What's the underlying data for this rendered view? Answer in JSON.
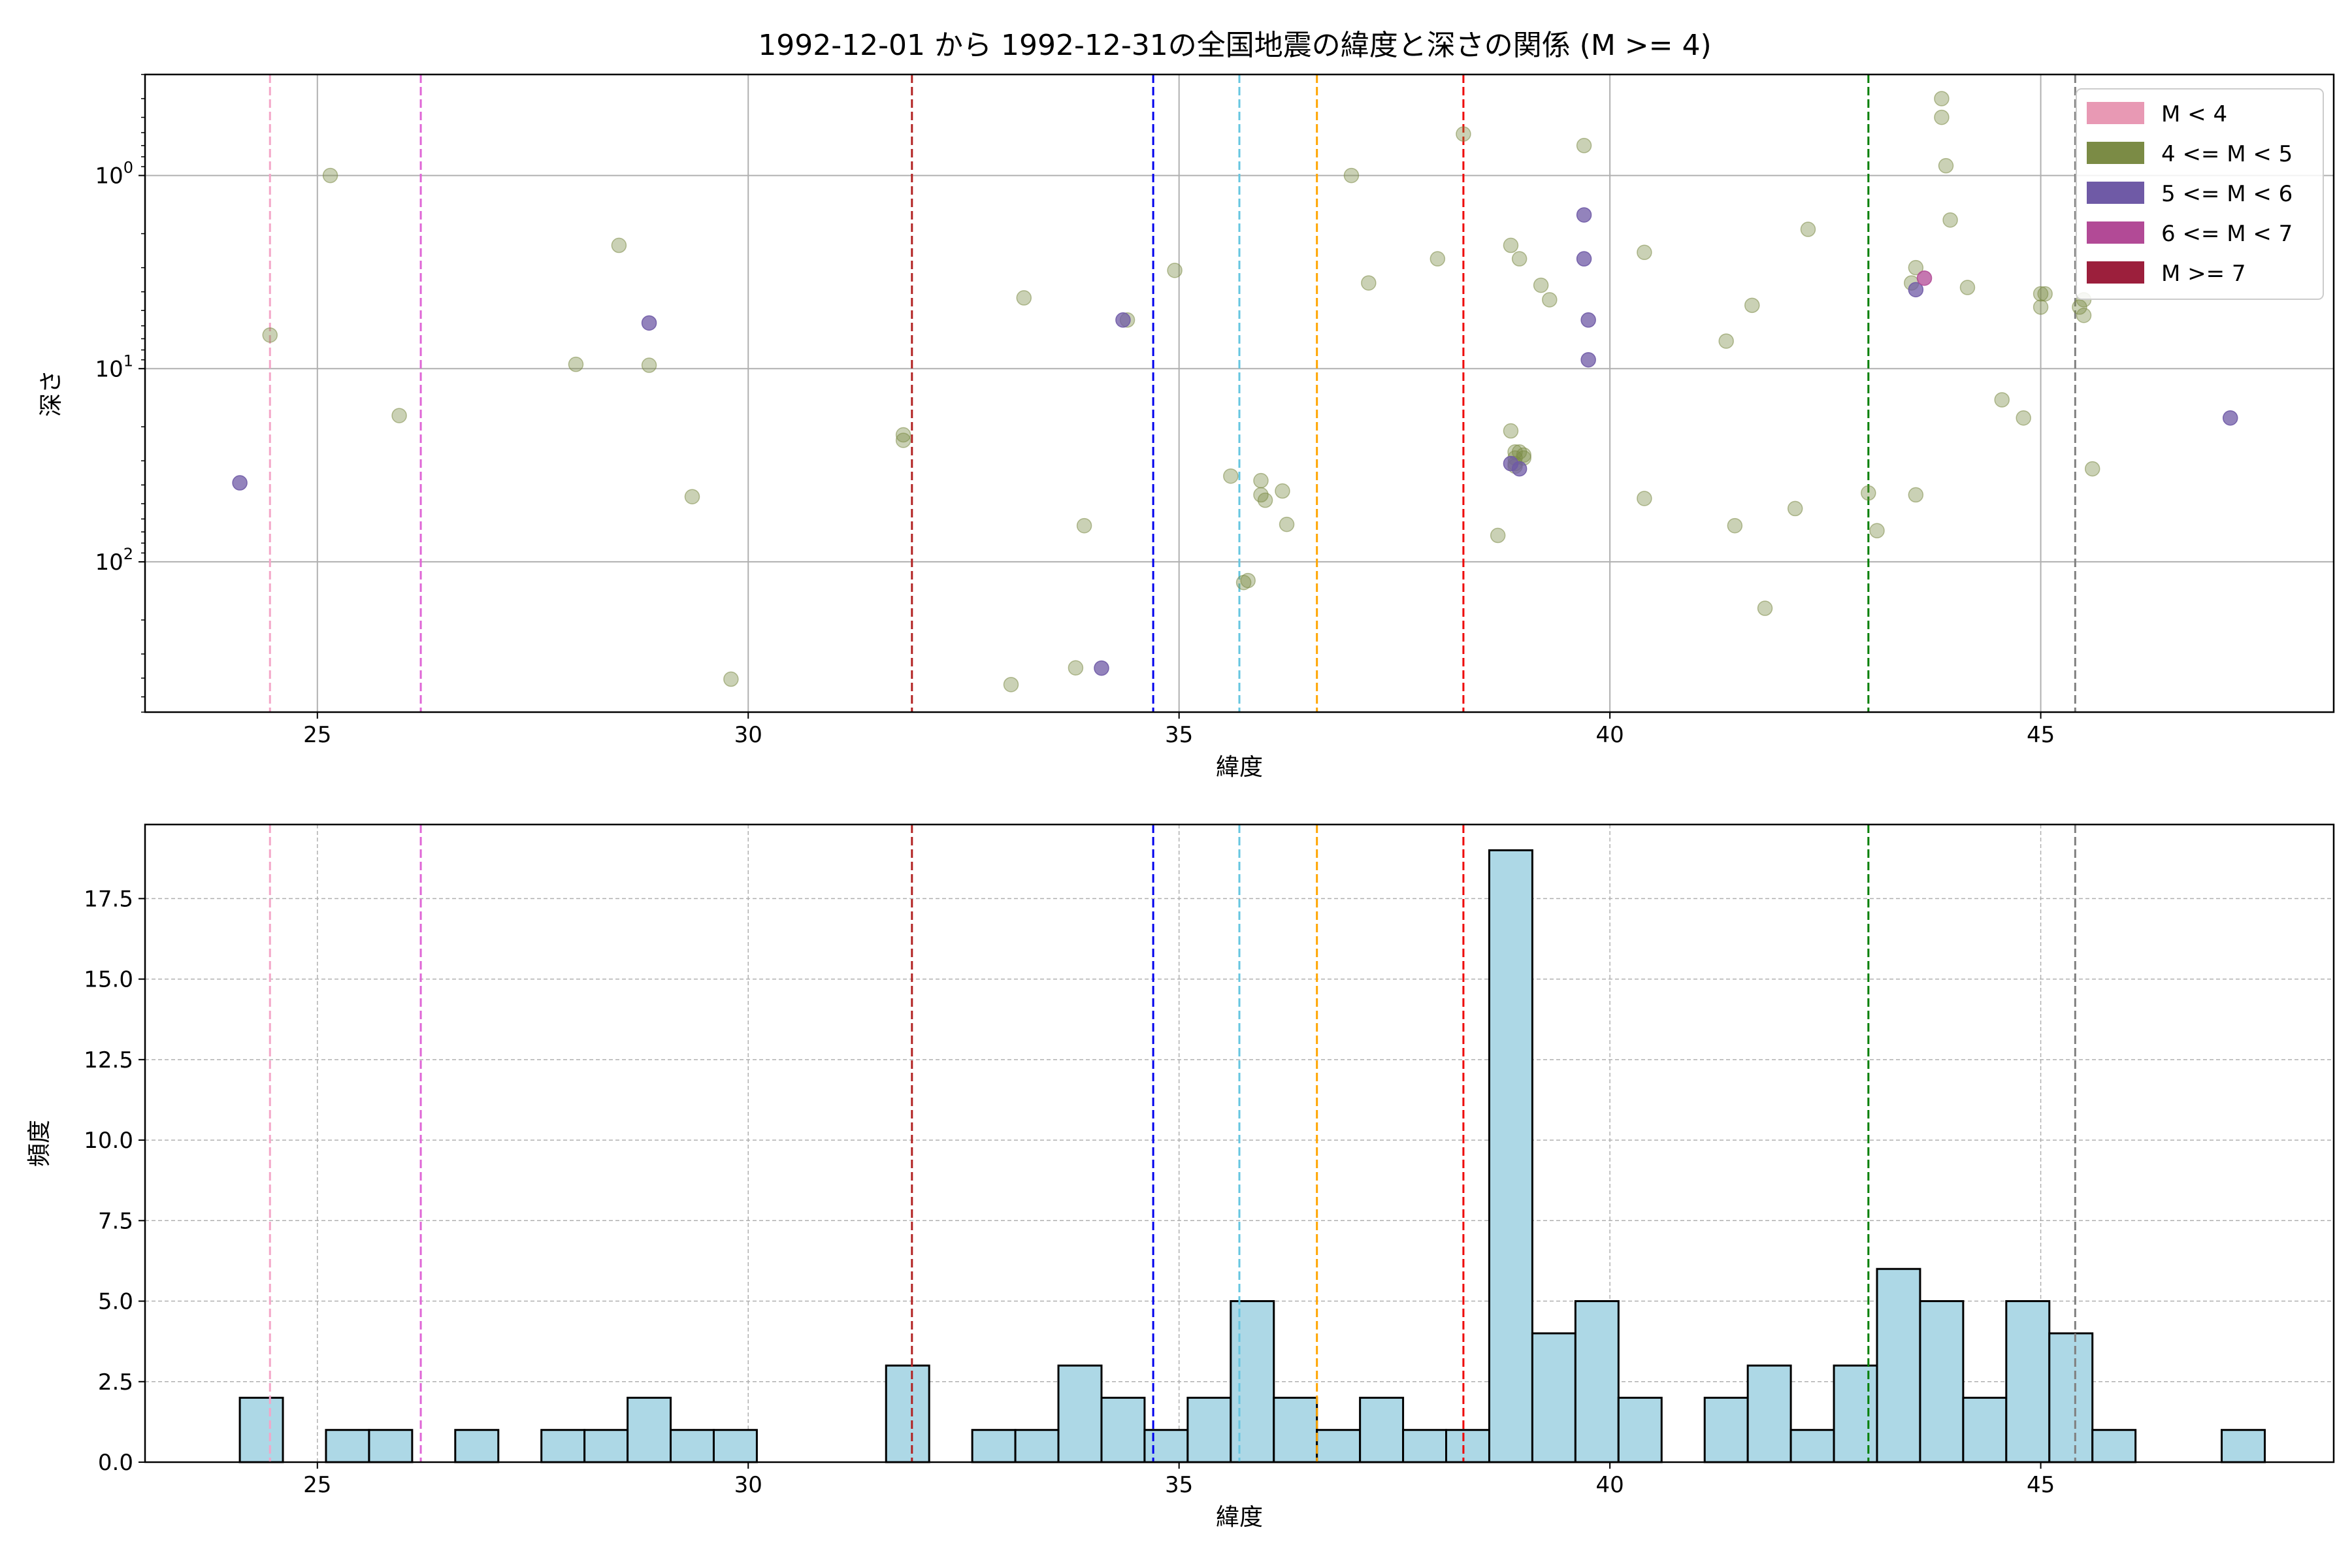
{
  "chart_data": [
    {
      "type": "scatter",
      "title": "1992-12-01 から 1992-12-31の全国地震の緯度と深さの関係 (M >= 4)",
      "xlabel": "緯度",
      "ylabel": "深さ",
      "xlim": [
        23,
        48.4
      ],
      "ylim": [
        600,
        0.3
      ],
      "yscale": "log-inverted",
      "grid": true,
      "xticks": [
        {
          "v": 25,
          "label": "25"
        },
        {
          "v": 30,
          "label": "30"
        },
        {
          "v": 35,
          "label": "35"
        },
        {
          "v": 40,
          "label": "40"
        },
        {
          "v": 45,
          "label": "45"
        }
      ],
      "yticks": [
        {
          "v": 1,
          "exp": "0"
        },
        {
          "v": 10,
          "exp": "1"
        },
        {
          "v": 100,
          "exp": "2"
        }
      ],
      "legend": {
        "placement": "top-right",
        "entries": [
          {
            "label": "M < 4",
            "color": "#e899b4"
          },
          {
            "label": "4 <= M < 5",
            "color": "#7b8b45"
          },
          {
            "label": "5 <= M < 6",
            "color": "#6f5aa6"
          },
          {
            "label": "6 <= M < 7",
            "color": "#b24a96"
          },
          {
            "label": "M >= 7",
            "color": "#9c1f3c"
          }
        ]
      },
      "vlines": [
        {
          "x": 24.45,
          "color": "#f4a6c8"
        },
        {
          "x": 26.2,
          "color": "#e066d6"
        },
        {
          "x": 31.9,
          "color": "#b22222"
        },
        {
          "x": 34.7,
          "color": "#0000ee"
        },
        {
          "x": 35.7,
          "color": "#66c6e0"
        },
        {
          "x": 36.6,
          "color": "#ffa500"
        },
        {
          "x": 38.3,
          "color": "#ee0000"
        },
        {
          "x": 43.0,
          "color": "#007f00"
        },
        {
          "x": 45.4,
          "color": "#808080"
        }
      ],
      "series": [
        {
          "class": "4 <= M < 5",
          "color": "#7b8b45",
          "opacity": 0.4,
          "points": [
            [
              24.45,
              6.7
            ],
            [
              25.15,
              1.0
            ],
            [
              25.95,
              17.5
            ],
            [
              28.0,
              9.5
            ],
            [
              28.5,
              2.3
            ],
            [
              28.85,
              9.6
            ],
            [
              29.35,
              46
            ],
            [
              29.8,
              405
            ],
            [
              31.8,
              22
            ],
            [
              31.8,
              23.5
            ],
            [
              33.05,
              432
            ],
            [
              33.2,
              4.3
            ],
            [
              33.8,
              354
            ],
            [
              33.9,
              65
            ],
            [
              34.4,
              5.6
            ],
            [
              34.95,
              3.1
            ],
            [
              35.6,
              36
            ],
            [
              35.75,
              128
            ],
            [
              35.8,
              125
            ],
            [
              35.95,
              38
            ],
            [
              35.95,
              45
            ],
            [
              36.0,
              48
            ],
            [
              36.2,
              43
            ],
            [
              36.25,
              64
            ],
            [
              37.0,
              1.0
            ],
            [
              37.2,
              3.6
            ],
            [
              38.0,
              2.7
            ],
            [
              38.3,
              0.61
            ],
            [
              38.7,
              73
            ],
            [
              38.85,
              2.3
            ],
            [
              38.85,
              21
            ],
            [
              38.9,
              27
            ],
            [
              38.9,
              29
            ],
            [
              38.9,
              31
            ],
            [
              38.9,
              32
            ],
            [
              38.95,
              2.7
            ],
            [
              38.95,
              27
            ],
            [
              39.0,
              28
            ],
            [
              39.0,
              29
            ],
            [
              39.2,
              3.7
            ],
            [
              39.3,
              4.4
            ],
            [
              39.7,
              0.7
            ],
            [
              40.4,
              2.5
            ],
            [
              40.4,
              47
            ],
            [
              41.35,
              7.2
            ],
            [
              41.45,
              65
            ],
            [
              41.65,
              4.7
            ],
            [
              41.8,
              174
            ],
            [
              42.15,
              53
            ],
            [
              42.3,
              1.9
            ],
            [
              43.0,
              44
            ],
            [
              43.1,
              69
            ],
            [
              43.5,
              3.6
            ],
            [
              43.55,
              3.0
            ],
            [
              43.55,
              45
            ],
            [
              43.85,
              0.4
            ],
            [
              43.85,
              0.5
            ],
            [
              43.9,
              0.89
            ],
            [
              43.95,
              1.7
            ],
            [
              44.15,
              3.8
            ],
            [
              44.55,
              14.5
            ],
            [
              44.8,
              18
            ],
            [
              45.0,
              4.8
            ],
            [
              45.0,
              4.1
            ],
            [
              45.05,
              4.1
            ],
            [
              45.45,
              4.8
            ],
            [
              45.5,
              5.3
            ],
            [
              45.5,
              4.4
            ],
            [
              45.6,
              33
            ]
          ]
        },
        {
          "class": "5 <= M < 6",
          "color": "#6f5aa6",
          "opacity": 0.75,
          "points": [
            [
              24.1,
              39
            ],
            [
              28.85,
              5.8
            ],
            [
              34.1,
              355
            ],
            [
              34.35,
              5.6
            ],
            [
              38.85,
              31
            ],
            [
              38.95,
              33
            ],
            [
              39.7,
              1.6
            ],
            [
              39.7,
              2.7
            ],
            [
              39.75,
              5.6
            ],
            [
              39.75,
              9.0
            ],
            [
              43.55,
              3.9
            ],
            [
              47.2,
              18
            ]
          ]
        },
        {
          "class": "6 <= M < 7",
          "color": "#b24a96",
          "opacity": 0.75,
          "points": [
            [
              43.65,
              3.4
            ]
          ]
        }
      ]
    },
    {
      "type": "bar",
      "title": "",
      "xlabel": "緯度",
      "ylabel": "頻度",
      "xlim": [
        23,
        48.4
      ],
      "ylim": [
        0,
        19.8
      ],
      "grid": true,
      "bar_color": "#add8e6",
      "edge_color": "#000000",
      "xticks": [
        {
          "v": 25,
          "label": "25"
        },
        {
          "v": 30,
          "label": "30"
        },
        {
          "v": 35,
          "label": "35"
        },
        {
          "v": 40,
          "label": "40"
        },
        {
          "v": 45,
          "label": "45"
        }
      ],
      "yticks": [
        {
          "v": 0,
          "label": "0.0"
        },
        {
          "v": 2.5,
          "label": "2.5"
        },
        {
          "v": 5,
          "label": "5.0"
        },
        {
          "v": 7.5,
          "label": "7.5"
        },
        {
          "v": 10,
          "label": "10.0"
        },
        {
          "v": 12.5,
          "label": "12.5"
        },
        {
          "v": 15,
          "label": "15.0"
        },
        {
          "v": 17.5,
          "label": "17.5"
        }
      ],
      "vlines": [
        {
          "x": 24.45,
          "color": "#f4a6c8"
        },
        {
          "x": 26.2,
          "color": "#e066d6"
        },
        {
          "x": 31.9,
          "color": "#b22222"
        },
        {
          "x": 34.7,
          "color": "#0000ee"
        },
        {
          "x": 35.7,
          "color": "#66c6e0"
        },
        {
          "x": 36.6,
          "color": "#ffa500"
        },
        {
          "x": 38.3,
          "color": "#ee0000"
        },
        {
          "x": 43.0,
          "color": "#007f00"
        },
        {
          "x": 45.4,
          "color": "#808080"
        }
      ],
      "bin_start": 24.1,
      "bin_width": 0.5,
      "values": [
        2,
        0,
        1,
        1,
        0,
        1,
        0,
        1,
        1,
        2,
        1,
        1,
        0,
        0,
        0,
        3,
        0,
        1,
        1,
        3,
        2,
        1,
        2,
        5,
        2,
        1,
        2,
        1,
        1,
        19,
        4,
        5,
        2,
        0,
        2,
        3,
        1,
        3,
        6,
        5,
        2,
        5,
        4,
        1,
        0,
        0,
        1
      ]
    }
  ]
}
